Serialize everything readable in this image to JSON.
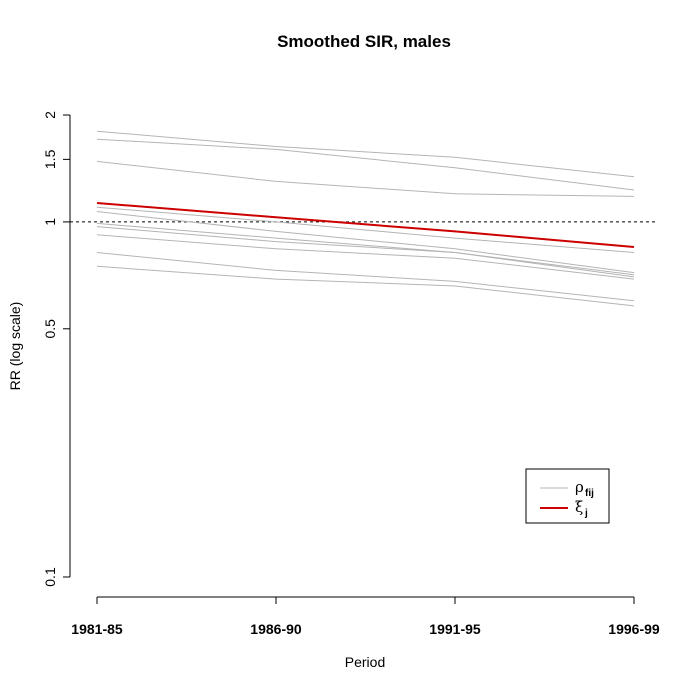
{
  "chart_data": {
    "type": "line",
    "title": "Smoothed SIR, males",
    "xlabel": "Period",
    "ylabel": "RR (log scale)",
    "x": [
      "1981-85",
      "1986-90",
      "1991-95",
      "1996-99"
    ],
    "y_scale": "log",
    "ylim": [
      0.1,
      2
    ],
    "y_ticks": [
      0.1,
      0.5,
      1,
      1.5,
      2
    ],
    "y_tick_labels": [
      "0.1",
      "0.5",
      "1",
      "1.5",
      "2"
    ],
    "reference_line": {
      "y": 1,
      "style": "dashed",
      "color": "#000000"
    },
    "series": [
      {
        "group": "rho",
        "color": "#b4b4b4",
        "values": [
          1.8,
          1.63,
          1.52,
          1.34
        ]
      },
      {
        "group": "rho",
        "color": "#b4b4b4",
        "values": [
          1.71,
          1.6,
          1.42,
          1.23
        ]
      },
      {
        "group": "rho",
        "color": "#b4b4b4",
        "values": [
          1.48,
          1.3,
          1.2,
          1.18
        ]
      },
      {
        "group": "rho",
        "color": "#b4b4b4",
        "values": [
          1.1,
          1.0,
          0.9,
          0.82
        ]
      },
      {
        "group": "rho",
        "color": "#b4b4b4",
        "values": [
          1.07,
          0.94,
          0.84,
          0.72
        ]
      },
      {
        "group": "rho",
        "color": "#b4b4b4",
        "values": [
          0.99,
          0.9,
          0.82,
          0.71
        ]
      },
      {
        "group": "rho",
        "color": "#b4b4b4",
        "values": [
          0.97,
          0.88,
          0.82,
          0.7
        ]
      },
      {
        "group": "rho",
        "color": "#b4b4b4",
        "values": [
          0.92,
          0.84,
          0.79,
          0.69
        ]
      },
      {
        "group": "rho",
        "color": "#b4b4b4",
        "values": [
          0.82,
          0.73,
          0.68,
          0.6
        ]
      },
      {
        "group": "rho",
        "color": "#b4b4b4",
        "values": [
          0.75,
          0.69,
          0.66,
          0.58
        ]
      },
      {
        "group": "xi",
        "color": "#cc0000",
        "values": [
          1.13,
          1.03,
          0.94,
          0.85
        ]
      }
    ],
    "legend": {
      "placement": "bottom-right",
      "entries": [
        {
          "symbol": "ρ",
          "subscript": "fij",
          "color": "#b4b4b4"
        },
        {
          "symbol": "ξ",
          "subscript": "j",
          "color": "#cc0000"
        }
      ]
    }
  }
}
